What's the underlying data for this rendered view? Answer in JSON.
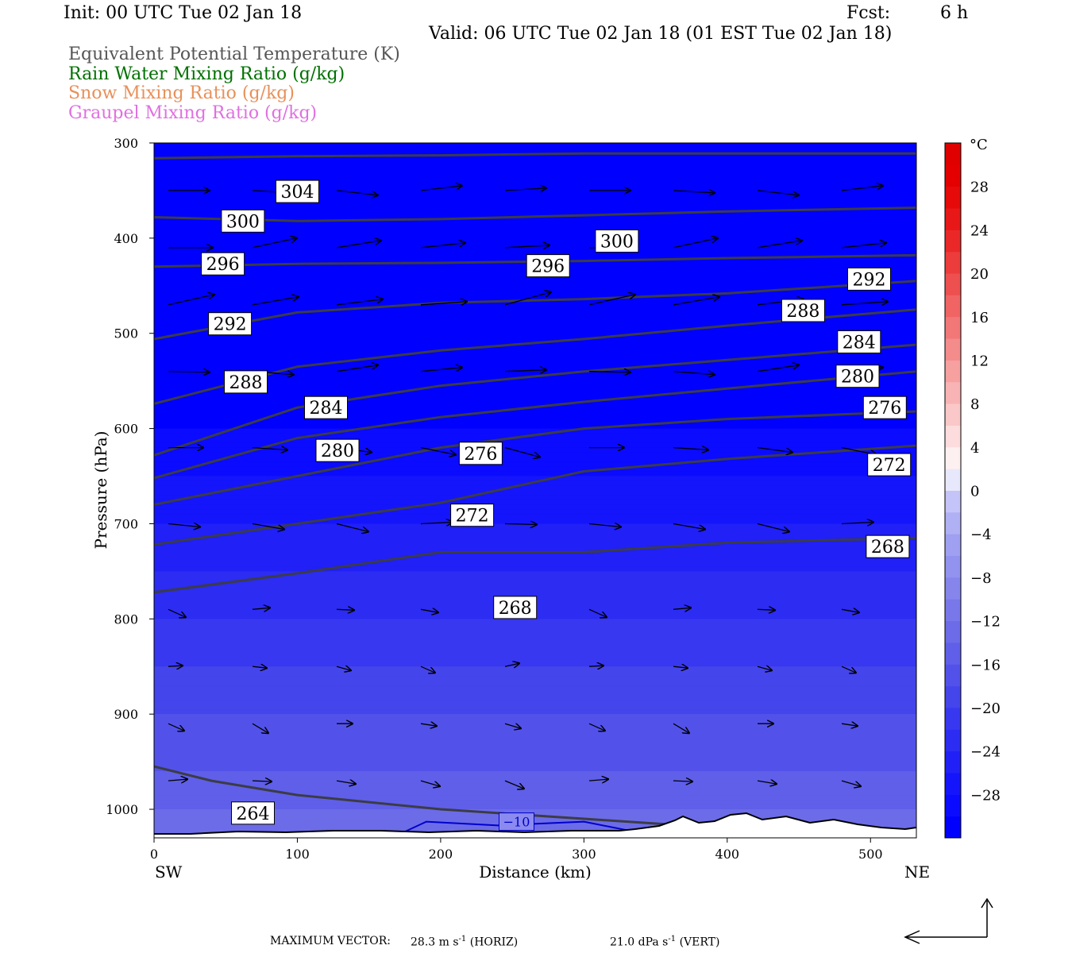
{
  "header": {
    "init": "Init: 00 UTC Tue 02 Jan 18",
    "fcst_label": "Fcst:",
    "fcst_value": "6 h",
    "valid": "Valid: 06 UTC Tue 02 Jan 18 (01 EST Tue 02 Jan 18)"
  },
  "legend": {
    "fields": [
      {
        "label": "Equivalent Potential Temperature (K)",
        "color": "#555555"
      },
      {
        "label": "Rain Water Mixing Ratio (g/kg)",
        "color": "#007000"
      },
      {
        "label": "Snow Mixing Ratio (g/kg)",
        "color": "#e8905a"
      },
      {
        "label": "Graupel Mixing Ratio (g/kg)",
        "color": "#e070e0"
      }
    ]
  },
  "footer": {
    "max_vector_label": "MAXIMUM VECTOR:",
    "horiz": "28.3 m s",
    "horiz_exp": "-1",
    "horiz_tag": "(HORIZ)",
    "vert": "21.0 dPa s",
    "vert_exp": "-1",
    "vert_tag": "(VERT)"
  },
  "chart_data": {
    "type": "heatmap",
    "xlabel": "Distance (km)",
    "ylabel": "Pressure (hPa)",
    "xlim": [
      0,
      532
    ],
    "ylim": [
      1030,
      300
    ],
    "x_ticks": [
      0,
      100,
      200,
      300,
      400,
      500
    ],
    "y_ticks": [
      300,
      400,
      500,
      600,
      700,
      800,
      900,
      1000
    ],
    "x_end_labels": {
      "left": "SW",
      "right": "NE"
    },
    "colorbar": {
      "unit": "°C",
      "levels": [
        -32,
        -30,
        -28,
        -26,
        -24,
        -22,
        -20,
        -18,
        -16,
        -14,
        -12,
        -10,
        -8,
        -6,
        -4,
        -2,
        0,
        2,
        4,
        6,
        8,
        10,
        12,
        14,
        16,
        18,
        20,
        22,
        24,
        26,
        28,
        30,
        32
      ],
      "tick_labels": [
        "28",
        "24",
        "20",
        "16",
        "12",
        "8",
        "4",
        "0",
        "−4",
        "−8",
        "−12",
        "−16",
        "−20",
        "−24",
        "−28"
      ],
      "tick_values": [
        28,
        24,
        20,
        16,
        12,
        8,
        4,
        0,
        -4,
        -8,
        -12,
        -16,
        -20,
        -24,
        -28
      ],
      "colors": [
        "#0000ff",
        "#0b0bff",
        "#1515fb",
        "#2020f7",
        "#2c2cf3",
        "#3838f0",
        "#4545ec",
        "#5252ea",
        "#5f5fe9",
        "#6c6ce8",
        "#7878ea",
        "#8585ec",
        "#9292ef",
        "#a0a0f2",
        "#b0b0f5",
        "#c4c4f8",
        "#e8e8fc",
        "#fdf0f0",
        "#fcdcdc",
        "#fac8c8",
        "#f8b4b4",
        "#f6a0a0",
        "#f48c8c",
        "#f27878",
        "#f06464",
        "#ee5050",
        "#ec3c3c",
        "#ea2828",
        "#e81818",
        "#e60a0a",
        "#e40000",
        "#e00000"
      ]
    },
    "temperature_profile": [
      {
        "p": 300,
        "t": -32
      },
      {
        "p": 600,
        "t": -30
      },
      {
        "p": 700,
        "t": -26
      },
      {
        "p": 800,
        "t": -22
      },
      {
        "p": 900,
        "t": -18
      },
      {
        "p": 960,
        "t": -16
      },
      {
        "p": 1000,
        "t": -14
      },
      {
        "p": 1030,
        "t": -12
      }
    ],
    "theta_e_contours": [
      {
        "label": "304",
        "label_x": 100,
        "label_p": 351,
        "points": [
          [
            0,
            316
          ],
          [
            100,
            314
          ],
          [
            200,
            313
          ],
          [
            300,
            311
          ],
          [
            400,
            311
          ],
          [
            532,
            311
          ]
        ]
      },
      {
        "label": "300",
        "label_x": 62,
        "label_p": 382,
        "points": [
          [
            0,
            378
          ],
          [
            100,
            382
          ],
          [
            200,
            380
          ],
          [
            300,
            376
          ],
          [
            400,
            372
          ],
          [
            532,
            368
          ]
        ]
      },
      {
        "label": "300",
        "label_x": 323,
        "label_p": 403,
        "points": [
          [
            0,
            378
          ],
          [
            100,
            382
          ],
          [
            200,
            380
          ],
          [
            300,
            376
          ],
          [
            400,
            372
          ],
          [
            532,
            368
          ]
        ]
      },
      {
        "label": "296",
        "label_x": 48,
        "label_p": 427,
        "points": [
          [
            0,
            430
          ],
          [
            100,
            427
          ],
          [
            200,
            426
          ],
          [
            300,
            424
          ],
          [
            400,
            421
          ],
          [
            532,
            418
          ]
        ]
      },
      {
        "label": "296",
        "label_x": 275,
        "label_p": 429,
        "points": [
          [
            0,
            430
          ],
          [
            100,
            427
          ],
          [
            200,
            426
          ],
          [
            300,
            424
          ],
          [
            400,
            421
          ],
          [
            532,
            418
          ]
        ]
      },
      {
        "label": "292",
        "label_x": 53,
        "label_p": 490,
        "points": [
          [
            0,
            506
          ],
          [
            100,
            478
          ],
          [
            200,
            468
          ],
          [
            300,
            464
          ],
          [
            400,
            458
          ],
          [
            532,
            445
          ]
        ]
      },
      {
        "label": "292",
        "label_x": 499,
        "label_p": 443,
        "points": [
          [
            0,
            506
          ],
          [
            100,
            478
          ],
          [
            200,
            468
          ],
          [
            300,
            464
          ],
          [
            400,
            458
          ],
          [
            532,
            445
          ]
        ]
      },
      {
        "label": "288",
        "label_x": 64,
        "label_p": 551,
        "points": [
          [
            0,
            574
          ],
          [
            100,
            535
          ],
          [
            200,
            518
          ],
          [
            300,
            506
          ],
          [
            400,
            492
          ],
          [
            532,
            475
          ]
        ]
      },
      {
        "label": "288",
        "label_x": 453,
        "label_p": 476,
        "points": [
          [
            0,
            574
          ],
          [
            100,
            535
          ],
          [
            200,
            518
          ],
          [
            300,
            506
          ],
          [
            400,
            492
          ],
          [
            532,
            475
          ]
        ]
      },
      {
        "label": "284",
        "label_x": 120,
        "label_p": 578,
        "points": [
          [
            0,
            628
          ],
          [
            100,
            578
          ],
          [
            200,
            555
          ],
          [
            300,
            540
          ],
          [
            400,
            528
          ],
          [
            532,
            512
          ]
        ]
      },
      {
        "label": "284",
        "label_x": 492,
        "label_p": 509,
        "points": [
          [
            0,
            628
          ],
          [
            100,
            578
          ],
          [
            200,
            555
          ],
          [
            300,
            540
          ],
          [
            400,
            528
          ],
          [
            532,
            512
          ]
        ]
      },
      {
        "label": "280",
        "label_x": 128,
        "label_p": 623,
        "points": [
          [
            0,
            652
          ],
          [
            100,
            610
          ],
          [
            200,
            588
          ],
          [
            300,
            572
          ],
          [
            400,
            558
          ],
          [
            532,
            540
          ]
        ]
      },
      {
        "label": "280",
        "label_x": 491,
        "label_p": 545,
        "points": [
          [
            0,
            652
          ],
          [
            100,
            610
          ],
          [
            200,
            588
          ],
          [
            300,
            572
          ],
          [
            400,
            558
          ],
          [
            532,
            540
          ]
        ]
      },
      {
        "label": "276",
        "label_x": 228,
        "label_p": 626,
        "points": [
          [
            0,
            680
          ],
          [
            100,
            650
          ],
          [
            200,
            620
          ],
          [
            300,
            600
          ],
          [
            400,
            590
          ],
          [
            532,
            582
          ]
        ]
      },
      {
        "label": "276",
        "label_x": 510,
        "label_p": 578,
        "points": [
          [
            0,
            680
          ],
          [
            100,
            650
          ],
          [
            200,
            620
          ],
          [
            300,
            600
          ],
          [
            400,
            590
          ],
          [
            532,
            582
          ]
        ]
      },
      {
        "label": "272",
        "label_x": 222,
        "label_p": 691,
        "points": [
          [
            0,
            722
          ],
          [
            100,
            700
          ],
          [
            200,
            678
          ],
          [
            300,
            645
          ],
          [
            400,
            632
          ],
          [
            532,
            618
          ]
        ]
      },
      {
        "label": "272",
        "label_x": 513,
        "label_p": 638,
        "points": [
          [
            0,
            722
          ],
          [
            100,
            700
          ],
          [
            200,
            678
          ],
          [
            300,
            645
          ],
          [
            400,
            632
          ],
          [
            532,
            618
          ]
        ]
      },
      {
        "label": "268",
        "label_x": 252,
        "label_p": 788,
        "points": [
          [
            0,
            772
          ],
          [
            100,
            752
          ],
          [
            200,
            730
          ],
          [
            300,
            730
          ],
          [
            400,
            720
          ],
          [
            532,
            715
          ]
        ]
      },
      {
        "label": "268",
        "label_x": 512,
        "label_p": 724,
        "points": [
          [
            0,
            772
          ],
          [
            100,
            752
          ],
          [
            200,
            730
          ],
          [
            300,
            730
          ],
          [
            400,
            720
          ],
          [
            532,
            715
          ]
        ]
      },
      {
        "label": "264",
        "label_x": 69,
        "label_p": 1004,
        "points": [
          [
            0,
            955
          ],
          [
            40,
            970
          ],
          [
            100,
            985
          ],
          [
            200,
            1000
          ],
          [
            300,
            1010
          ],
          [
            400,
            1020
          ],
          [
            532,
            1022
          ]
        ]
      }
    ],
    "minus10_label": "−10",
    "minus10_x": 253,
    "minus10_p": 1013
  }
}
